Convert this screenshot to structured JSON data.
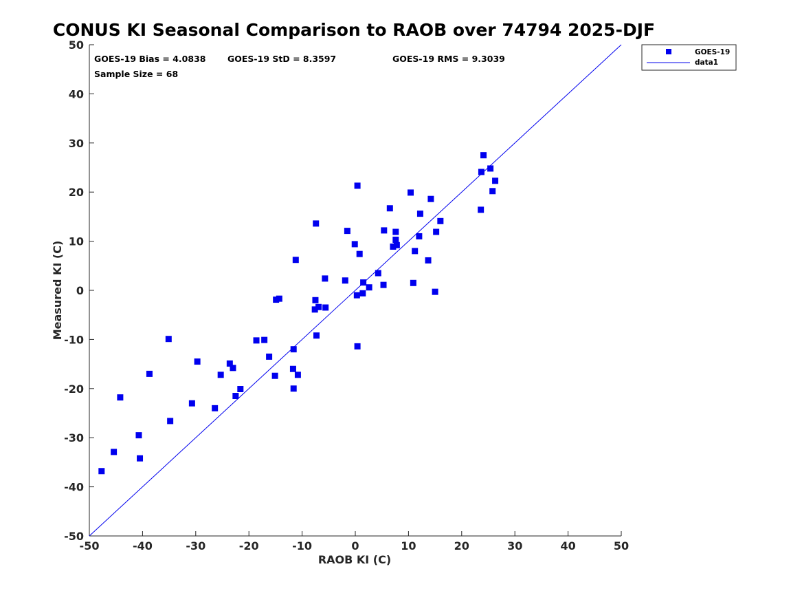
{
  "chart_data": {
    "type": "scatter",
    "title": "CONUS KI Seasonal Comparison to RAOB over 74794 2025-DJF",
    "xlabel": "RAOB KI (C)",
    "ylabel": "Measured KI (C)",
    "xlim": [
      -50,
      50
    ],
    "ylim": [
      -50,
      50
    ],
    "xticks": [
      -50,
      -40,
      -30,
      -20,
      -10,
      0,
      10,
      20,
      30,
      40,
      50
    ],
    "yticks": [
      -50,
      -40,
      -30,
      -20,
      -10,
      0,
      10,
      20,
      30,
      40,
      50
    ],
    "grid": false,
    "legend_position": "outside-top-right",
    "stats": {
      "bias": "GOES-19 Bias = 4.0838",
      "std": "GOES-19 StD = 8.3597",
      "rms": "GOES-19 RMS = 9.3039",
      "sample": "Sample Size = 68"
    },
    "series": [
      {
        "name": "GOES-19",
        "kind": "markers",
        "color": "#0000ee",
        "points": [
          [
            -47.7,
            -36.8
          ],
          [
            -45.4,
            -32.9
          ],
          [
            -44.2,
            -21.8
          ],
          [
            -40.7,
            -29.5
          ],
          [
            -40.5,
            -34.2
          ],
          [
            -38.7,
            -17.0
          ],
          [
            -35.1,
            -9.9
          ],
          [
            -34.8,
            -26.6
          ],
          [
            -30.7,
            -23.0
          ],
          [
            -29.7,
            -14.5
          ],
          [
            -26.4,
            -24.0
          ],
          [
            -25.3,
            -17.2
          ],
          [
            -23.6,
            -14.9
          ],
          [
            -23.0,
            -15.8
          ],
          [
            -22.5,
            -21.5
          ],
          [
            -21.6,
            -20.1
          ],
          [
            -18.6,
            -10.2
          ],
          [
            -17.1,
            -10.1
          ],
          [
            -16.2,
            -13.5
          ],
          [
            -15.1,
            -17.4
          ],
          [
            -14.9,
            -1.9
          ],
          [
            -14.3,
            -1.7
          ],
          [
            -11.7,
            -16.0
          ],
          [
            -11.6,
            -20.0
          ],
          [
            -11.6,
            -12.0
          ],
          [
            -11.2,
            6.2
          ],
          [
            -10.8,
            -17.2
          ],
          [
            -7.6,
            -3.9
          ],
          [
            -7.5,
            -2.0
          ],
          [
            -7.4,
            13.6
          ],
          [
            -7.3,
            -9.2
          ],
          [
            -6.9,
            -3.4
          ],
          [
            -5.7,
            2.4
          ],
          [
            -5.6,
            -3.5
          ],
          [
            -1.9,
            2.0
          ],
          [
            -1.5,
            12.1
          ],
          [
            -0.1,
            9.4
          ],
          [
            0.3,
            -1.0
          ],
          [
            0.4,
            21.3
          ],
          [
            0.4,
            -11.4
          ],
          [
            0.8,
            7.4
          ],
          [
            1.4,
            -0.6
          ],
          [
            1.5,
            1.6
          ],
          [
            2.6,
            0.6
          ],
          [
            4.3,
            3.5
          ],
          [
            5.3,
            1.1
          ],
          [
            5.4,
            12.2
          ],
          [
            6.5,
            16.7
          ],
          [
            7.1,
            8.9
          ],
          [
            7.6,
            11.9
          ],
          [
            7.6,
            10.3
          ],
          [
            7.8,
            9.2
          ],
          [
            10.4,
            19.9
          ],
          [
            10.9,
            1.5
          ],
          [
            11.2,
            8.0
          ],
          [
            12.0,
            11.0
          ],
          [
            12.2,
            15.6
          ],
          [
            13.7,
            6.1
          ],
          [
            14.2,
            18.6
          ],
          [
            15.0,
            -0.3
          ],
          [
            15.2,
            11.9
          ],
          [
            16.0,
            14.1
          ],
          [
            23.6,
            16.4
          ],
          [
            23.7,
            24.1
          ],
          [
            24.1,
            27.5
          ],
          [
            25.4,
            24.8
          ],
          [
            25.8,
            20.2
          ],
          [
            26.3,
            22.3
          ]
        ]
      },
      {
        "name": "data1",
        "kind": "line",
        "color": "#0000ee",
        "x": [
          -50,
          50
        ],
        "y": [
          -50,
          50
        ]
      }
    ]
  }
}
